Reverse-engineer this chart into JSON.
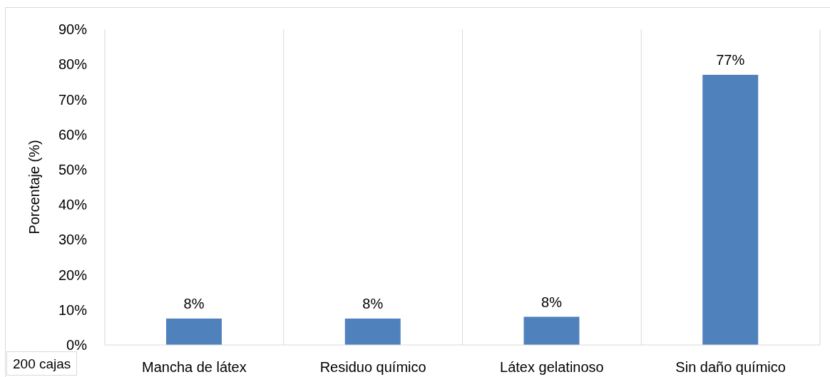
{
  "chart_data": {
    "type": "bar",
    "ylabel": "Porcentaje (%)",
    "categories": [
      "Mancha de látex",
      "Residuo químico",
      "Látex gelatinoso",
      "Sin daño químico"
    ],
    "values": [
      7.5,
      7.5,
      8,
      77
    ],
    "value_labels": [
      "8%",
      "8%",
      "8%",
      "77%"
    ],
    "color": "#4f81bd",
    "ylim": [
      0,
      90
    ],
    "yticks": [
      {
        "value": 0,
        "label": "0%"
      },
      {
        "value": 10,
        "label": "10%"
      },
      {
        "value": 20,
        "label": "20%"
      },
      {
        "value": 30,
        "label": "30%"
      },
      {
        "value": 40,
        "label": "40%"
      },
      {
        "value": 50,
        "label": "50%"
      },
      {
        "value": 60,
        "label": "60%"
      },
      {
        "value": 70,
        "label": "70%"
      },
      {
        "value": 80,
        "label": "80%"
      },
      {
        "value": 90,
        "label": "90%"
      }
    ],
    "grid": "x",
    "annotations": [
      "200 cajas"
    ]
  }
}
